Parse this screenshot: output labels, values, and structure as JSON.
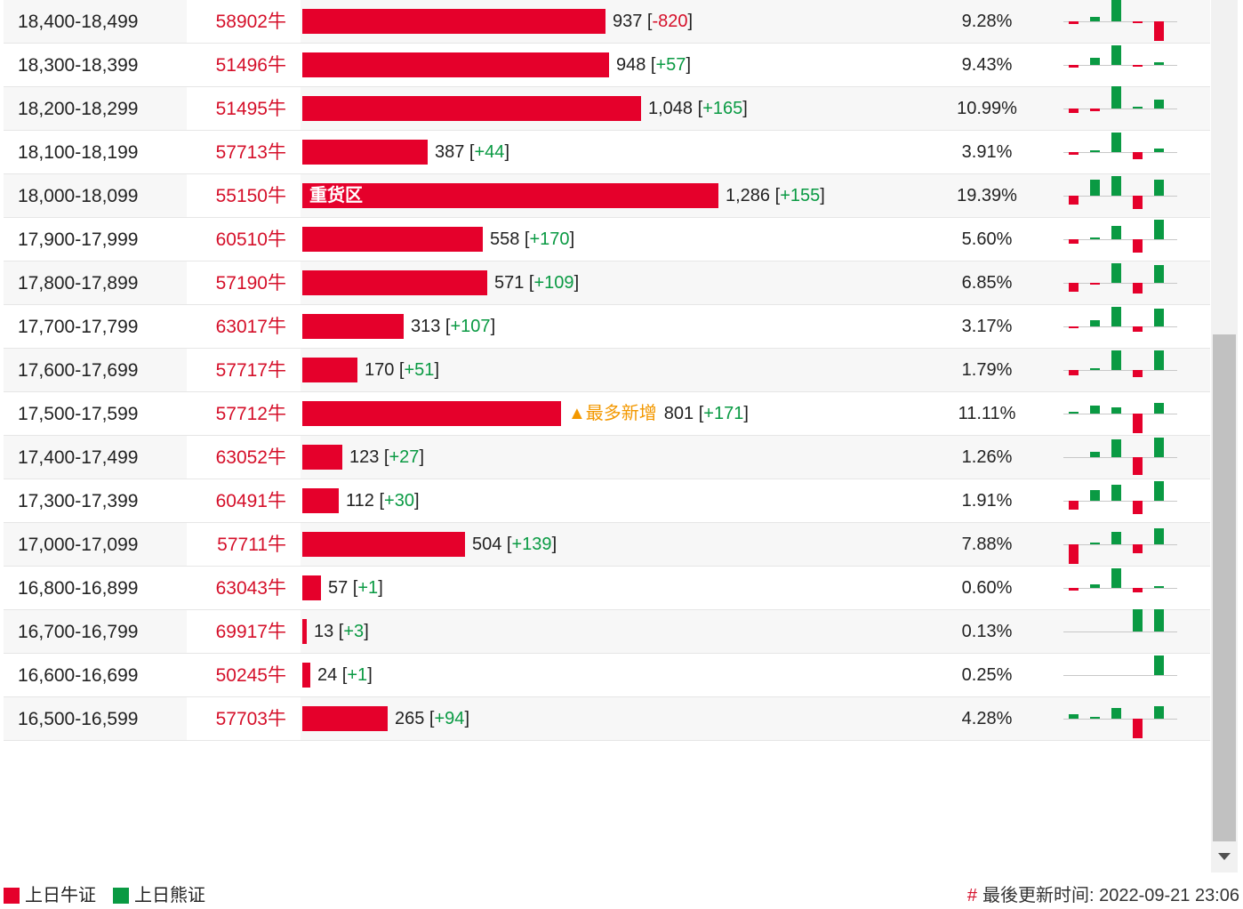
{
  "colors": {
    "bull": "#e5002b",
    "bear": "#0a9a43",
    "highlight": "#f39800"
  },
  "unit_max": 1286,
  "rows": [
    {
      "range": "18,400-18,499",
      "code": "58902牛",
      "value": "937",
      "change": "-820",
      "percent": "9.28%",
      "bar_value": 937,
      "spark": [
        -3,
        5,
        25,
        -2,
        -22
      ]
    },
    {
      "range": "18,300-18,399",
      "code": "51496牛",
      "value": "948",
      "change": "+57",
      "percent": "9.43%",
      "bar_value": 948,
      "spark": [
        -3,
        8,
        22,
        -2,
        3
      ]
    },
    {
      "range": "18,200-18,299",
      "code": "51495牛",
      "value": "1,048",
      "change": "+165",
      "percent": "10.99%",
      "bar_value": 1048,
      "spark": [
        -5,
        -3,
        25,
        2,
        10
      ]
    },
    {
      "range": "18,100-18,199",
      "code": "57713牛",
      "value": "387",
      "change": "+44",
      "percent": "3.91%",
      "bar_value": 387,
      "spark": [
        -3,
        2,
        22,
        -8,
        4
      ]
    },
    {
      "range": "18,000-18,099",
      "code": "55150牛",
      "value": "1,286",
      "change": "+155",
      "percent": "19.39%",
      "bar_value": 1286,
      "label": "重货区",
      "spark": [
        -10,
        18,
        22,
        -15,
        18
      ]
    },
    {
      "range": "17,900-17,999",
      "code": "60510牛",
      "value": "558",
      "change": "+170",
      "percent": "5.60%",
      "bar_value": 558,
      "spark": [
        -5,
        2,
        15,
        -15,
        22
      ]
    },
    {
      "range": "17,800-17,899",
      "code": "57190牛",
      "value": "571",
      "change": "+109",
      "percent": "6.85%",
      "bar_value": 571,
      "spark": [
        -10,
        -2,
        22,
        -12,
        20
      ]
    },
    {
      "range": "17,700-17,799",
      "code": "63017牛",
      "value": "313",
      "change": "+107",
      "percent": "3.17%",
      "bar_value": 313,
      "spark": [
        -2,
        7,
        22,
        -6,
        20
      ]
    },
    {
      "range": "17,600-17,699",
      "code": "57717牛",
      "value": "170",
      "change": "+51",
      "percent": "1.79%",
      "bar_value": 170,
      "spark": [
        -6,
        2,
        22,
        -8,
        22
      ]
    },
    {
      "range": "17,500-17,599",
      "code": "57712牛",
      "value": "801",
      "change": "+171",
      "percent": "11.11%",
      "bar_value": 801,
      "hot": "▲最多新增",
      "spark": [
        2,
        9,
        7,
        -22,
        12
      ]
    },
    {
      "range": "17,400-17,499",
      "code": "63052牛",
      "value": "123",
      "change": "+27",
      "percent": "1.26%",
      "bar_value": 123,
      "spark": [
        0,
        6,
        20,
        -20,
        22
      ]
    },
    {
      "range": "17,300-17,399",
      "code": "60491牛",
      "value": "112",
      "change": "+30",
      "percent": "1.91%",
      "bar_value": 112,
      "spark": [
        -10,
        12,
        18,
        -15,
        22
      ]
    },
    {
      "range": "17,000-17,099",
      "code": "57711牛",
      "value": "504",
      "change": "+139",
      "percent": "7.88%",
      "bar_value": 504,
      "spark": [
        -22,
        2,
        14,
        -10,
        18
      ]
    },
    {
      "range": "16,800-16,899",
      "code": "63043牛",
      "value": "57",
      "change": "+1",
      "percent": "0.60%",
      "bar_value": 57,
      "spark": [
        -3,
        4,
        22,
        -5,
        2
      ]
    },
    {
      "range": "16,700-16,799",
      "code": "69917牛",
      "value": "13",
      "change": "+3",
      "percent": "0.13%",
      "bar_value": 13,
      "spark": [
        0,
        0,
        0,
        25,
        25
      ]
    },
    {
      "range": "16,600-16,699",
      "code": "50245牛",
      "value": "24",
      "change": "+1",
      "percent": "0.25%",
      "bar_value": 24,
      "spark": [
        0,
        0,
        0,
        0,
        22
      ]
    },
    {
      "range": "16,500-16,599",
      "code": "57703牛",
      "value": "265",
      "change": "+94",
      "percent": "4.28%",
      "bar_value": 265,
      "spark": [
        5,
        2,
        12,
        -22,
        14
      ]
    }
  ],
  "legend": {
    "bull_label": "上日牛证",
    "bear_label": "上日熊证"
  },
  "update": {
    "label": "最後更新时间:",
    "time": "2022-09-21 23:06"
  },
  "icons": {
    "hot": "triangle-up-icon",
    "scroll_down": "caret-down-icon",
    "update": "hash-icon"
  }
}
